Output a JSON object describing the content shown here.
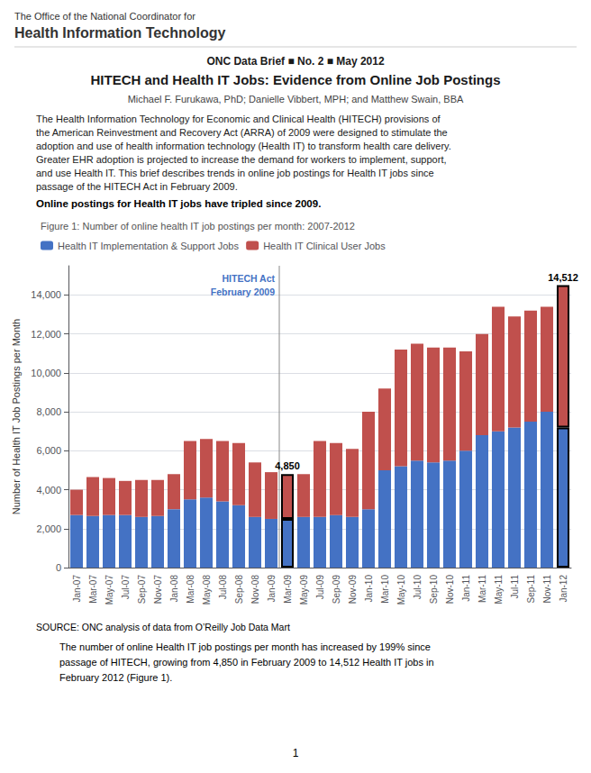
{
  "page": {
    "header": [
      "The Office of the National Coordinator for",
      "Health Information Technology"
    ],
    "kicker": "ONC Data Brief ■ No. 2 ■ May 2012",
    "headline": "HITECH and Health IT Jobs: Evidence from Online Job Postings",
    "authors": "Michael F. Furukawa, PhD; Danielle Vibbert, MPH; and Matthew Swain, BBA",
    "body": [
      "The Health Information Technology for Economic and Clinical Health (HITECH) provisions of",
      "the American Reinvestment and Recovery Act (ARRA) of 2009 were designed to stimulate the",
      "adoption and use of health information technology (Health IT) to transform health care delivery.",
      "Greater EHR adoption is projected to increase the demand for workers to implement, support,",
      "and use Health IT. This brief describes trends in online job postings for Health IT jobs since",
      "passage of the HITECH Act in February 2009."
    ],
    "finding": "Online postings for Health IT jobs have tripled since 2009.",
    "source": "SOURCE: ONC analysis of data from O’Reilly Job Data Mart",
    "bullet": [
      [
        "The number of online Health IT job postings per month has increased by 199% since"
      ],
      [
        "passage of HITECH, growing from 4,850 in February 2009 to 14,512 Health IT jobs in"
      ],
      [
        "February 2012 (",
        "Figure 1",
        ")."
      ]
    ],
    "page_number": "1"
  },
  "chart_data": {
    "type": "bar",
    "title": "Figure 1: Number of online health IT job postings per month: 2007-2012",
    "categories": [
      "Jan-07",
      "Mar-07",
      "May-07",
      "Jul-07",
      "Sep-07",
      "Nov-07",
      "Jan-08",
      "Mar-08",
      "May-08",
      "Jul-08",
      "Sep-08",
      "Nov-08",
      "Jan-09",
      "Mar-09",
      "May-09",
      "Jul-09",
      "Sep-09",
      "Nov-09",
      "Jan-10",
      "Mar-10",
      "May-10",
      "Jul-10",
      "Sep-10",
      "Nov-10",
      "Jan-11",
      "Mar-11",
      "May-11",
      "Jul-11",
      "Sep-11",
      "Nov-11",
      "Jan-12"
    ],
    "series": [
      {
        "name": "Health IT Implementation & Support Jobs",
        "color": "#4472C4",
        "values": [
          2700,
          2650,
          2700,
          2700,
          2600,
          2650,
          3000,
          3500,
          3600,
          3400,
          3200,
          2600,
          2500,
          2500,
          2600,
          2600,
          2700,
          2600,
          3000,
          5000,
          5200,
          5500,
          5400,
          5500,
          6000,
          6800,
          7000,
          7200,
          7500,
          8000,
          7200
        ]
      },
      {
        "name": "Health IT Clinical User Jobs",
        "color": "#C0504D",
        "values": [
          1300,
          2000,
          1900,
          1750,
          1900,
          1850,
          1800,
          3000,
          3000,
          3100,
          3200,
          2800,
          2400,
          2300,
          2200,
          3900,
          3700,
          3500,
          5000,
          4200,
          6000,
          6000,
          5900,
          5800,
          5100,
          5200,
          6400,
          5700,
          5700,
          5400,
          7300
        ]
      }
    ],
    "stacked": true,
    "ylabel": "Number of Health IT Job Postings per Month",
    "ylim": [
      0,
      15500
    ],
    "yticks": [
      0,
      {
        "value": 2000,
        "label": "2,000"
      },
      {
        "value": 4000,
        "label": "4,000"
      },
      {
        "value": 6000,
        "label": "6,000"
      },
      {
        "value": 8000,
        "label": "8,000"
      },
      {
        "value": 10000,
        "label": "10,000"
      },
      {
        "value": 12000,
        "label": "12,000"
      },
      {
        "value": 14000,
        "label": "14,000"
      }
    ],
    "grid": true,
    "legend": "upper left",
    "annotations": [
      {
        "text": [
          "HITECH Act",
          "February 2009"
        ],
        "x": "Mar-09"
      },
      {
        "text": "4,850",
        "x": "Mar-09",
        "y": 4850
      },
      {
        "text": "14,512",
        "x": "Jan-12",
        "y": 14512
      }
    ]
  }
}
